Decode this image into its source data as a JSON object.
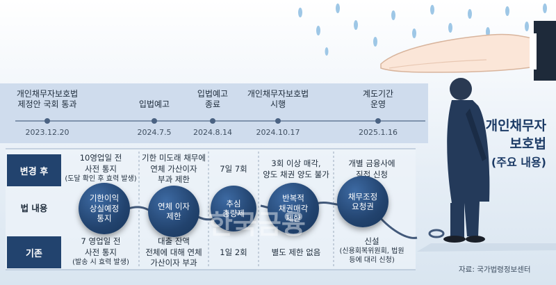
{
  "title": {
    "line1": "개인채무자",
    "line2": "보호법",
    "sub": "(주요 내용)"
  },
  "timeline": [
    {
      "event": "개인채무자보호법\n제정안 국회 통과",
      "date": "2023.12.20"
    },
    {
      "event": "입법예고",
      "date": "2024.7.5"
    },
    {
      "event": "입법예고\n종료",
      "date": "2024.8.14"
    },
    {
      "event": "개인채무자보호법\n시행",
      "date": "2024.10.17"
    },
    {
      "event": "계도기간\n운영",
      "date": "2025.1.16"
    }
  ],
  "rows": {
    "after": "변경 후",
    "content": "법 내용",
    "before": "기존"
  },
  "items": [
    {
      "after": "10영업일 전\n사전 통지",
      "after_note": "(도달 확인 후 효력 발생)",
      "topic": "기한이익\n상실예정\n통지",
      "before": "7 영업일 전\n사전 통지",
      "before_note": "(발송 시 효력 발생)"
    },
    {
      "after": "기한 미도래 채무에\n연체 가산이자\n부과 제한",
      "after_note": "",
      "topic": "연체 이자\n제한",
      "before": "대출 잔액\n전체에 대해 연체\n가산이자 부과",
      "before_note": ""
    },
    {
      "after": "7일 7회",
      "after_note": "",
      "topic": "추심\n총량제",
      "before": "1일 2회",
      "before_note": ""
    },
    {
      "after": "3회 이상 매각,\n양도 채권 양도 불가",
      "after_note": "",
      "topic": "반복적\n채권매각\n제한",
      "before": "별도 제한 없음",
      "before_note": ""
    },
    {
      "after": "개별 금융사에\n직접 신청",
      "after_note": "",
      "topic": "채무조정\n요청권",
      "before": "신설",
      "before_note": "(신용회복위원회, 법원\n등에 대리 신청)"
    }
  ],
  "source": "자료: 국가법령정보센터",
  "watermark": "한국금융",
  "colors": {
    "navy": "#22436e",
    "band": "#cfdced"
  }
}
